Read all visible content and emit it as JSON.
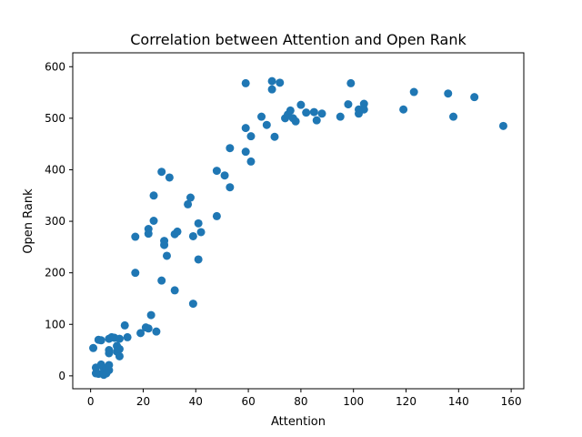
{
  "chart_data": {
    "type": "scatter",
    "title": "Correlation between Attention and Open Rank",
    "xlabel": "Attention",
    "ylabel": "Open Rank",
    "xlim": [
      -6.8,
      164.8
    ],
    "ylim": [
      -25,
      627
    ],
    "xticks": [
      0,
      20,
      40,
      60,
      80,
      100,
      120,
      140,
      160
    ],
    "yticks": [
      0,
      100,
      200,
      300,
      400,
      500,
      600
    ],
    "grid": false,
    "legend": "none",
    "marker_color": "#1f77b4",
    "series": [
      {
        "x": [
          1,
          2,
          2,
          3,
          3,
          4,
          4,
          5,
          5,
          5,
          6,
          6,
          7,
          7,
          7,
          7,
          7,
          8,
          9,
          10,
          10,
          11,
          11,
          11,
          13,
          14,
          17,
          17,
          19,
          21,
          22,
          22,
          22,
          23,
          24,
          24,
          25,
          27,
          27,
          28,
          28,
          29,
          30,
          32,
          32,
          33,
          37,
          38,
          39,
          39,
          41,
          41,
          42,
          48,
          48,
          51,
          53,
          53,
          59,
          59,
          59,
          61,
          61,
          65,
          67,
          69,
          69,
          70,
          72,
          74,
          75,
          76,
          77,
          78,
          80,
          82,
          85,
          86,
          88,
          95,
          98,
          99,
          102,
          102,
          104,
          104,
          119,
          123,
          136,
          138,
          146,
          157
        ],
        "y": [
          54,
          5,
          16,
          70,
          4,
          69,
          22,
          2,
          6,
          15,
          5,
          14,
          44,
          50,
          11,
          21,
          72,
          75,
          74,
          58,
          47,
          72,
          52,
          38,
          98,
          75,
          200,
          270,
          83,
          94,
          285,
          276,
          92,
          118,
          301,
          350,
          86,
          185,
          396,
          254,
          262,
          233,
          385,
          166,
          275,
          280,
          333,
          346,
          271,
          140,
          296,
          226,
          279,
          398,
          310,
          389,
          366,
          442,
          568,
          481,
          435,
          465,
          416,
          503,
          487,
          572,
          556,
          464,
          569,
          500,
          507,
          515,
          500,
          494,
          526,
          511,
          512,
          496,
          509,
          503,
          527,
          568,
          517,
          509,
          528,
          517,
          517,
          551,
          548,
          503,
          541,
          485
        ]
      }
    ]
  }
}
